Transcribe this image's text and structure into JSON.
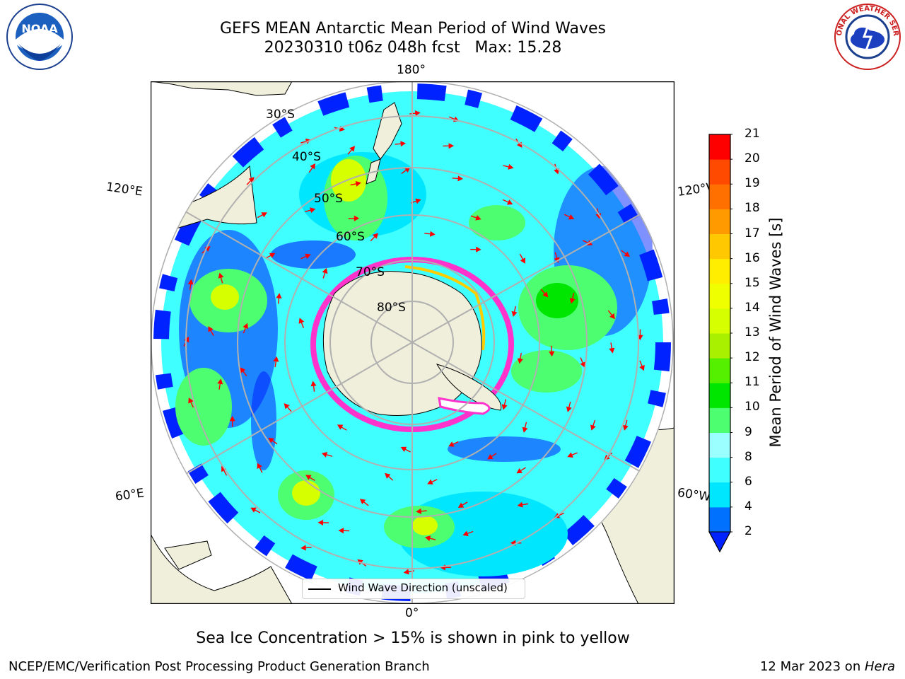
{
  "title_line1": "GEFS MEAN Antarctic Mean Period of Wind Waves",
  "title_line2": "20230310 t06z 048h fcst   Max: 15.28",
  "caption": "Sea Ice Concentration > 15% is shown in pink to yellow",
  "footer_left": "NCEP/EMC/Verification Post Processing Product Generation Branch",
  "footer_right_date": "12 Mar 2023 on ",
  "footer_right_host": "Hera",
  "legend_label": "Wind Wave Direction (unscaled)",
  "colorbar": {
    "label": "Mean Period of Wind Waves [s]",
    "ticks": [
      "2",
      "4",
      "6",
      "8",
      "9",
      "10",
      "11",
      "12",
      "13",
      "14",
      "15",
      "16",
      "17",
      "18",
      "19",
      "20",
      "21"
    ],
    "colors": [
      "#0070ff",
      "#00e6ff",
      "#40ffff",
      "#9bffff",
      "#4dff70",
      "#00e600",
      "#55f000",
      "#a9f000",
      "#d6ff00",
      "#f0ff00",
      "#ffee00",
      "#ffc800",
      "#ff9a00",
      "#ff7000",
      "#ff4a00",
      "#ff0000"
    ],
    "extend_color": "#0022ff"
  },
  "map": {
    "projection": "south-polar-stereographic",
    "lon_labels": {
      "top": "180°",
      "bottom": "0°",
      "upper_left": "120°E",
      "upper_right": "120°W",
      "lower_left": "60°E",
      "lower_right": "60°W"
    },
    "lat_labels": [
      "30°S",
      "40°S",
      "50°S",
      "60°S",
      "70°S",
      "80°S"
    ],
    "land_color": "#efefdb",
    "ocean_fill": "#40ffff",
    "ice_colors": [
      "#ff33cc",
      "#ffcc00"
    ],
    "arrow_color": "#ff0000"
  },
  "logos": {
    "left": "NOAA",
    "right": "NATIONAL WEATHER SERVICE"
  }
}
